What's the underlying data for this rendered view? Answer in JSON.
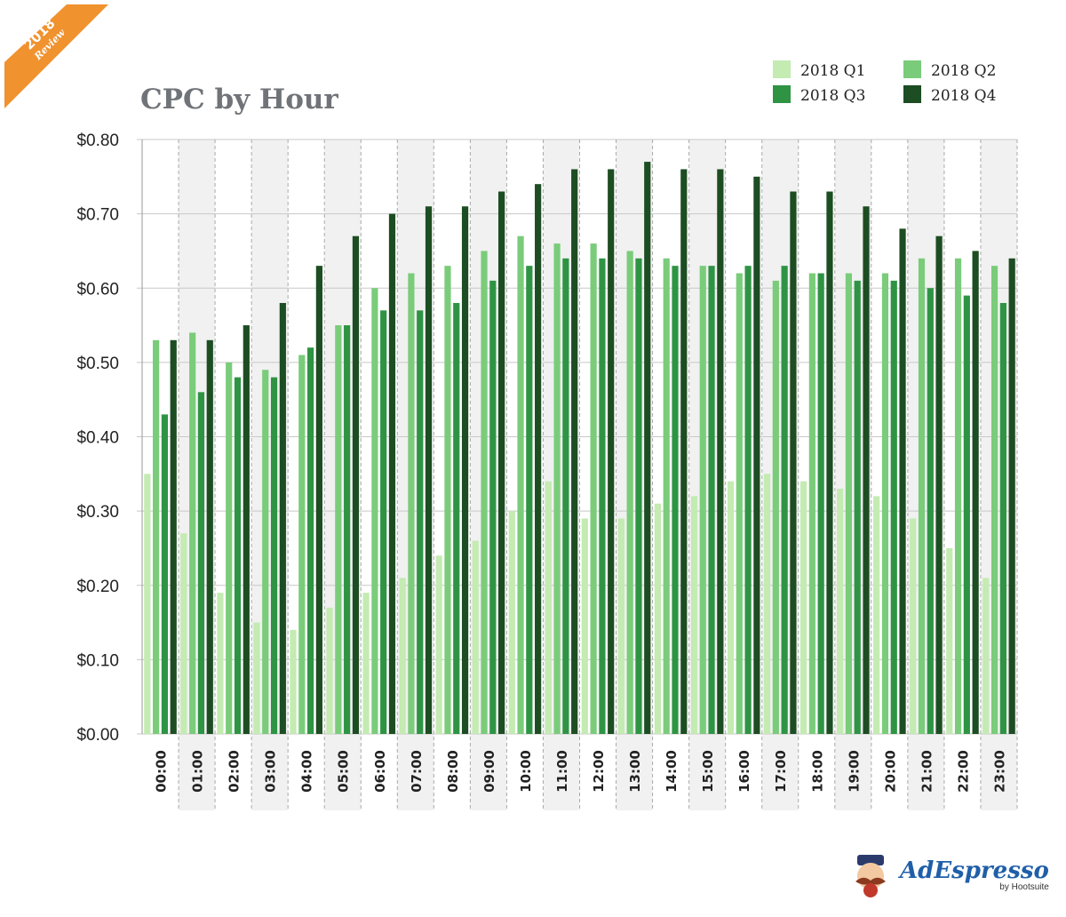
{
  "badge": {
    "year": "2018",
    "label": "Review",
    "color": "#f0922e"
  },
  "brand": {
    "name": "AdEspresso",
    "sub": "by Hootsuite",
    "icon": "mustache-mascot-icon"
  },
  "chart_data": {
    "type": "bar",
    "title": "CPC by Hour",
    "xlabel": "",
    "ylabel": "",
    "ylim": [
      0,
      0.8
    ],
    "yticks": [
      "$0.00",
      "$0.10",
      "$0.20",
      "$0.30",
      "$0.40",
      "$0.50",
      "$0.60",
      "$0.70",
      "$0.80"
    ],
    "grid": true,
    "legend_position": "top-right",
    "categories": [
      "00:00",
      "01:00",
      "02:00",
      "03:00",
      "04:00",
      "05:00",
      "06:00",
      "07:00",
      "08:00",
      "09:00",
      "10:00",
      "11:00",
      "12:00",
      "13:00",
      "14:00",
      "15:00",
      "16:00",
      "17:00",
      "18:00",
      "19:00",
      "20:00",
      "21:00",
      "22:00",
      "23:00"
    ],
    "series": [
      {
        "name": "2018 Q1",
        "color": "#c3ebb2",
        "values": [
          0.35,
          0.27,
          0.19,
          0.15,
          0.14,
          0.17,
          0.19,
          0.21,
          0.24,
          0.26,
          0.3,
          0.34,
          0.29,
          0.29,
          0.31,
          0.32,
          0.34,
          0.35,
          0.34,
          0.33,
          0.32,
          0.29,
          0.25,
          0.21
        ]
      },
      {
        "name": "2018 Q2",
        "color": "#7acc7a",
        "values": [
          0.53,
          0.54,
          0.5,
          0.49,
          0.51,
          0.55,
          0.6,
          0.62,
          0.63,
          0.65,
          0.67,
          0.66,
          0.66,
          0.65,
          0.64,
          0.63,
          0.62,
          0.61,
          0.62,
          0.62,
          0.62,
          0.64,
          0.64,
          0.63
        ]
      },
      {
        "name": "2018 Q3",
        "color": "#2e9444",
        "values": [
          0.43,
          0.46,
          0.48,
          0.48,
          0.52,
          0.55,
          0.57,
          0.57,
          0.58,
          0.61,
          0.63,
          0.64,
          0.64,
          0.64,
          0.63,
          0.63,
          0.63,
          0.63,
          0.62,
          0.61,
          0.61,
          0.6,
          0.59,
          0.58
        ]
      },
      {
        "name": "2018 Q4",
        "color": "#1d4d22",
        "values": [
          0.53,
          0.53,
          0.55,
          0.58,
          0.63,
          0.67,
          0.7,
          0.71,
          0.71,
          0.73,
          0.74,
          0.76,
          0.76,
          0.77,
          0.76,
          0.76,
          0.75,
          0.73,
          0.73,
          0.71,
          0.68,
          0.67,
          0.65,
          0.64
        ]
      }
    ]
  }
}
